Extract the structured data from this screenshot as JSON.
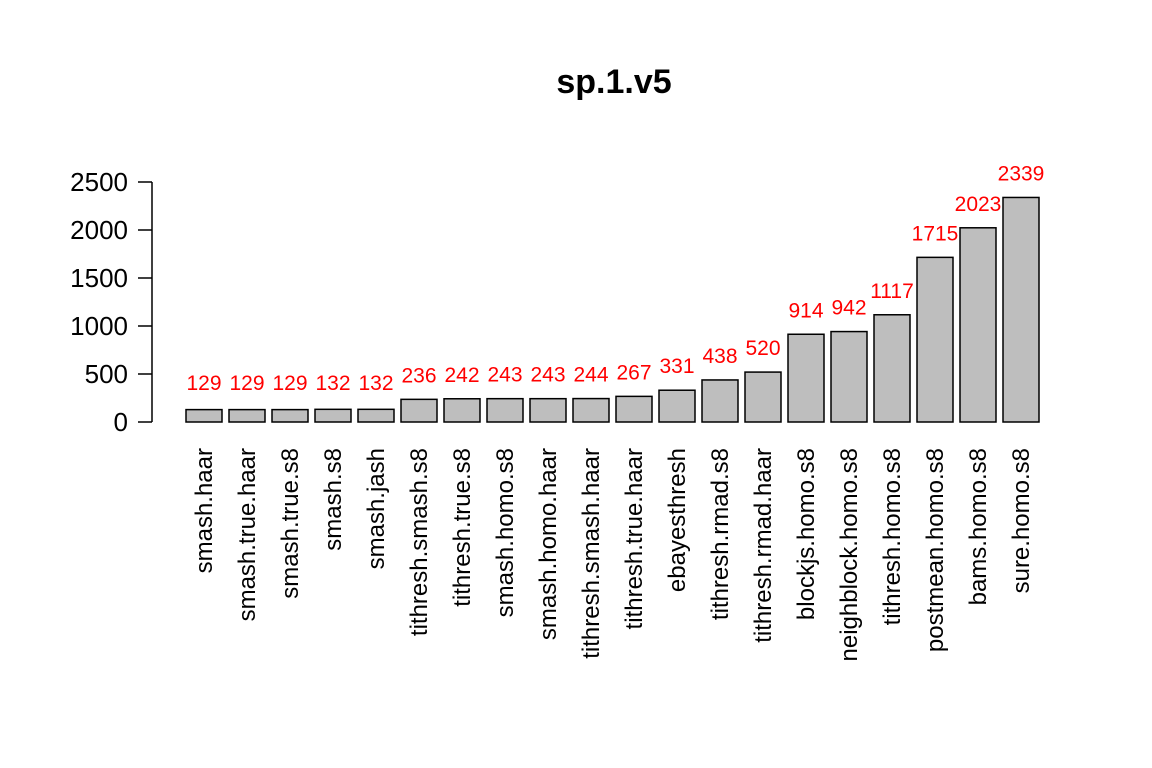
{
  "chart_data": {
    "type": "bar",
    "title": "sp.1.v5",
    "xlabel": "",
    "ylabel": "",
    "categories": [
      "smash.haar",
      "smash.true.haar",
      "smash.true.s8",
      "smash.s8",
      "smash.jash",
      "tithresh.smash.s8",
      "tithresh.true.s8",
      "smash.homo.s8",
      "smash.homo.haar",
      "tithresh.smash.haar",
      "tithresh.true.haar",
      "ebayesthresh",
      "tithresh.rmad.s8",
      "tithresh.rmad.haar",
      "blockjs.homo.s8",
      "neighblock.homo.s8",
      "tithresh.homo.s8",
      "postmean.homo.s8",
      "bams.homo.s8",
      "sure.homo.s8"
    ],
    "values": [
      129,
      129,
      129,
      132,
      132,
      236,
      242,
      243,
      243,
      244,
      267,
      331,
      438,
      520,
      914,
      942,
      1117,
      1715,
      2023,
      2339
    ],
    "data_labels": [
      "129",
      "129",
      "129",
      "132",
      "132",
      "236",
      "242",
      "243",
      "243",
      "244",
      "267",
      "331",
      "438",
      "520",
      "914",
      "942",
      "1117",
      "1715",
      "2023",
      "2339"
    ],
    "yticks": [
      "0",
      "500",
      "1000",
      "1500",
      "2000",
      "2500"
    ],
    "ytick_values": [
      0,
      500,
      1000,
      1500,
      2000,
      2500
    ],
    "ylim": [
      0,
      2500
    ],
    "grid": false,
    "legend": "none",
    "bar_color": "#bebebe",
    "bar_border_color": "#000000",
    "label_color": "#ff0000"
  }
}
